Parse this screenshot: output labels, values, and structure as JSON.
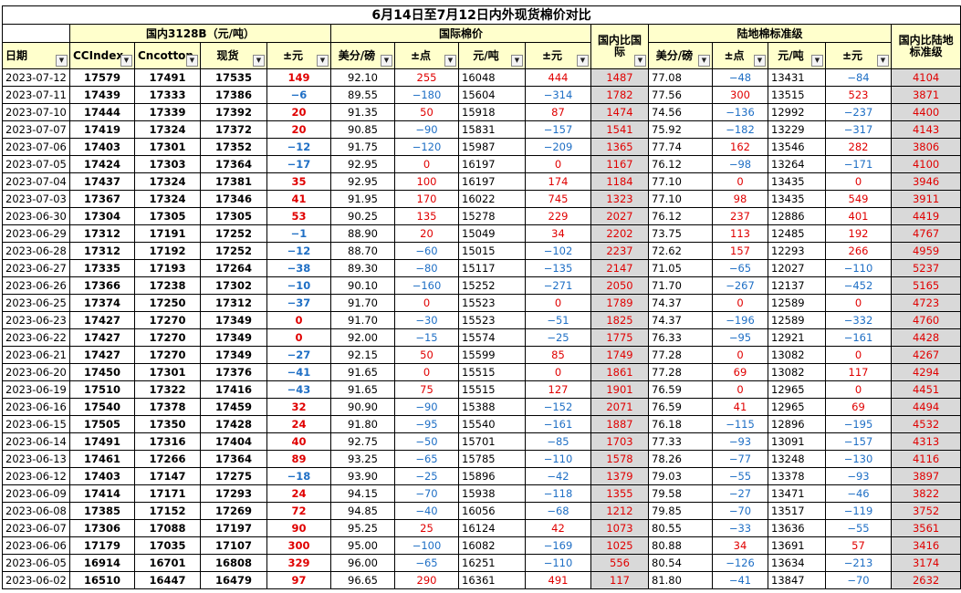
{
  "title": "6月14日至7月12日内外现货棉价对比",
  "groups": {
    "domestic": "国内3128B（元/吨）",
    "intl": "国际棉价",
    "land": "陆地棉标准级"
  },
  "headers": {
    "date": "日期",
    "ccindex": "CCIndex",
    "cncotton": "Cncotton",
    "spot": "现货",
    "chg": "±元",
    "usc_lb": "美分/磅",
    "chg_pts": "±点",
    "yuan_t": "元/吨",
    "chg_yuan": "±元",
    "dom_vs_intl": "国内比国际",
    "land_usc": "美分/磅",
    "land_chg_pts": "±点",
    "land_yuan": "元/吨",
    "land_chg_yuan": "±元",
    "dom_vs_land": "国内比陆地标准级"
  },
  "rows": [
    {
      "date": "2023-07-12",
      "cci": "17579",
      "cnc": "17491",
      "spot": "17535",
      "chg": "149",
      "usc": "92.10",
      "pts": "255",
      "yt": "16048",
      "yc": "444",
      "diff": "1487",
      "lusc": "77.08",
      "lpts": "−48",
      "lyt": "13431",
      "lyc": "−84",
      "ldiff": "4104"
    },
    {
      "date": "2023-07-11",
      "cci": "17439",
      "cnc": "17333",
      "spot": "17386",
      "chg": "−6",
      "usc": "89.55",
      "pts": "−180",
      "yt": "15604",
      "yc": "−314",
      "diff": "1782",
      "lusc": "77.56",
      "lpts": "300",
      "lyt": "13515",
      "lyc": "523",
      "ldiff": "3871"
    },
    {
      "date": "2023-07-10",
      "cci": "17444",
      "cnc": "17339",
      "spot": "17392",
      "chg": "20",
      "usc": "91.35",
      "pts": "50",
      "yt": "15918",
      "yc": "87",
      "diff": "1474",
      "lusc": "74.56",
      "lpts": "−136",
      "lyt": "12992",
      "lyc": "−237",
      "ldiff": "4400"
    },
    {
      "date": "2023-07-07",
      "cci": "17419",
      "cnc": "17324",
      "spot": "17372",
      "chg": "20",
      "usc": "90.85",
      "pts": "−90",
      "yt": "15831",
      "yc": "−157",
      "diff": "1541",
      "lusc": "75.92",
      "lpts": "−182",
      "lyt": "13229",
      "lyc": "−317",
      "ldiff": "4143"
    },
    {
      "date": "2023-07-06",
      "cci": "17403",
      "cnc": "17301",
      "spot": "17352",
      "chg": "−12",
      "usc": "91.75",
      "pts": "−120",
      "yt": "15987",
      "yc": "−209",
      "diff": "1365",
      "lusc": "77.74",
      "lpts": "162",
      "lyt": "13546",
      "lyc": "282",
      "ldiff": "3806"
    },
    {
      "date": "2023-07-05",
      "cci": "17424",
      "cnc": "17303",
      "spot": "17364",
      "chg": "−17",
      "usc": "92.95",
      "pts": "0",
      "yt": "16197",
      "yc": "0",
      "diff": "1167",
      "lusc": "76.12",
      "lpts": "−98",
      "lyt": "13264",
      "lyc": "−171",
      "ldiff": "4100"
    },
    {
      "date": "2023-07-04",
      "cci": "17437",
      "cnc": "17324",
      "spot": "17381",
      "chg": "35",
      "usc": "92.95",
      "pts": "100",
      "yt": "16197",
      "yc": "174",
      "diff": "1184",
      "lusc": "77.10",
      "lpts": "0",
      "lyt": "13435",
      "lyc": "0",
      "ldiff": "3946"
    },
    {
      "date": "2023-07-03",
      "cci": "17367",
      "cnc": "17324",
      "spot": "17346",
      "chg": "41",
      "usc": "91.95",
      "pts": "170",
      "yt": "16022",
      "yc": "745",
      "diff": "1323",
      "lusc": "77.10",
      "lpts": "98",
      "lyt": "13435",
      "lyc": "549",
      "ldiff": "3911"
    },
    {
      "date": "2023-06-30",
      "cci": "17304",
      "cnc": "17305",
      "spot": "17305",
      "chg": "53",
      "usc": "90.25",
      "pts": "135",
      "yt": "15278",
      "yc": "229",
      "diff": "2027",
      "lusc": "76.12",
      "lpts": "237",
      "lyt": "12886",
      "lyc": "401",
      "ldiff": "4419"
    },
    {
      "date": "2023-06-29",
      "cci": "17312",
      "cnc": "17191",
      "spot": "17252",
      "chg": "−1",
      "usc": "88.90",
      "pts": "20",
      "yt": "15049",
      "yc": "34",
      "diff": "2202",
      "lusc": "73.75",
      "lpts": "113",
      "lyt": "12485",
      "lyc": "192",
      "ldiff": "4767"
    },
    {
      "date": "2023-06-28",
      "cci": "17312",
      "cnc": "17192",
      "spot": "17252",
      "chg": "−12",
      "usc": "88.70",
      "pts": "−60",
      "yt": "15015",
      "yc": "−102",
      "diff": "2237",
      "lusc": "72.62",
      "lpts": "157",
      "lyt": "12293",
      "lyc": "266",
      "ldiff": "4959"
    },
    {
      "date": "2023-06-27",
      "cci": "17335",
      "cnc": "17193",
      "spot": "17264",
      "chg": "−38",
      "usc": "89.30",
      "pts": "−80",
      "yt": "15117",
      "yc": "−135",
      "diff": "2147",
      "lusc": "71.05",
      "lpts": "−65",
      "lyt": "12027",
      "lyc": "−110",
      "ldiff": "5237"
    },
    {
      "date": "2023-06-26",
      "cci": "17366",
      "cnc": "17238",
      "spot": "17302",
      "chg": "−10",
      "usc": "90.10",
      "pts": "−160",
      "yt": "15252",
      "yc": "−271",
      "diff": "2050",
      "lusc": "71.70",
      "lpts": "−267",
      "lyt": "12137",
      "lyc": "−452",
      "ldiff": "5165"
    },
    {
      "date": "2023-06-25",
      "cci": "17374",
      "cnc": "17250",
      "spot": "17312",
      "chg": "−37",
      "usc": "91.70",
      "pts": "0",
      "yt": "15523",
      "yc": "0",
      "diff": "1789",
      "lusc": "74.37",
      "lpts": "0",
      "lyt": "12589",
      "lyc": "0",
      "ldiff": "4723"
    },
    {
      "date": "2023-06-23",
      "cci": "17427",
      "cnc": "17270",
      "spot": "17349",
      "chg": "0",
      "usc": "91.70",
      "pts": "−30",
      "yt": "15523",
      "yc": "−51",
      "diff": "1825",
      "lusc": "74.37",
      "lpts": "−196",
      "lyt": "12589",
      "lyc": "−332",
      "ldiff": "4760"
    },
    {
      "date": "2023-06-22",
      "cci": "17427",
      "cnc": "17270",
      "spot": "17349",
      "chg": "0",
      "usc": "92.00",
      "pts": "−15",
      "yt": "15574",
      "yc": "−25",
      "diff": "1775",
      "lusc": "76.33",
      "lpts": "−95",
      "lyt": "12921",
      "lyc": "−161",
      "ldiff": "4428"
    },
    {
      "date": "2023-06-21",
      "cci": "17427",
      "cnc": "17270",
      "spot": "17349",
      "chg": "−27",
      "usc": "92.15",
      "pts": "50",
      "yt": "15599",
      "yc": "85",
      "diff": "1749",
      "lusc": "77.28",
      "lpts": "0",
      "lyt": "13082",
      "lyc": "0",
      "ldiff": "4267"
    },
    {
      "date": "2023-06-20",
      "cci": "17450",
      "cnc": "17301",
      "spot": "17376",
      "chg": "−41",
      "usc": "91.65",
      "pts": "0",
      "yt": "15515",
      "yc": "0",
      "diff": "1861",
      "lusc": "77.28",
      "lpts": "69",
      "lyt": "13082",
      "lyc": "117",
      "ldiff": "4294"
    },
    {
      "date": "2023-06-19",
      "cci": "17510",
      "cnc": "17322",
      "spot": "17416",
      "chg": "−43",
      "usc": "91.65",
      "pts": "75",
      "yt": "15515",
      "yc": "127",
      "diff": "1901",
      "lusc": "76.59",
      "lpts": "0",
      "lyt": "12965",
      "lyc": "0",
      "ldiff": "4451"
    },
    {
      "date": "2023-06-16",
      "cci": "17540",
      "cnc": "17378",
      "spot": "17459",
      "chg": "32",
      "usc": "90.90",
      "pts": "−90",
      "yt": "15388",
      "yc": "−152",
      "diff": "2071",
      "lusc": "76.59",
      "lpts": "41",
      "lyt": "12965",
      "lyc": "69",
      "ldiff": "4494"
    },
    {
      "date": "2023-06-15",
      "cci": "17505",
      "cnc": "17350",
      "spot": "17428",
      "chg": "24",
      "usc": "91.80",
      "pts": "−95",
      "yt": "15540",
      "yc": "−161",
      "diff": "1887",
      "lusc": "76.18",
      "lpts": "−115",
      "lyt": "12896",
      "lyc": "−195",
      "ldiff": "4532"
    },
    {
      "date": "2023-06-14",
      "cci": "17491",
      "cnc": "17316",
      "spot": "17404",
      "chg": "40",
      "usc": "92.75",
      "pts": "−50",
      "yt": "15701",
      "yc": "−85",
      "diff": "1703",
      "lusc": "77.33",
      "lpts": "−93",
      "lyt": "13091",
      "lyc": "−157",
      "ldiff": "4313"
    },
    {
      "date": "2023-06-13",
      "cci": "17461",
      "cnc": "17266",
      "spot": "17364",
      "chg": "89",
      "usc": "93.25",
      "pts": "−65",
      "yt": "15785",
      "yc": "−110",
      "diff": "1578",
      "lusc": "78.26",
      "lpts": "−77",
      "lyt": "13248",
      "lyc": "−130",
      "ldiff": "4116"
    },
    {
      "date": "2023-06-12",
      "cci": "17403",
      "cnc": "17147",
      "spot": "17275",
      "chg": "−18",
      "usc": "93.90",
      "pts": "−25",
      "yt": "15896",
      "yc": "−42",
      "diff": "1379",
      "lusc": "79.03",
      "lpts": "−55",
      "lyt": "13378",
      "lyc": "−93",
      "ldiff": "3897"
    },
    {
      "date": "2023-06-09",
      "cci": "17414",
      "cnc": "17171",
      "spot": "17293",
      "chg": "24",
      "usc": "94.15",
      "pts": "−70",
      "yt": "15938",
      "yc": "−118",
      "diff": "1355",
      "lusc": "79.58",
      "lpts": "−27",
      "lyt": "13471",
      "lyc": "−46",
      "ldiff": "3822"
    },
    {
      "date": "2023-06-08",
      "cci": "17385",
      "cnc": "17152",
      "spot": "17269",
      "chg": "72",
      "usc": "94.85",
      "pts": "−40",
      "yt": "16056",
      "yc": "−68",
      "diff": "1212",
      "lusc": "79.85",
      "lpts": "−70",
      "lyt": "13517",
      "lyc": "−119",
      "ldiff": "3752"
    },
    {
      "date": "2023-06-07",
      "cci": "17306",
      "cnc": "17088",
      "spot": "17197",
      "chg": "90",
      "usc": "95.25",
      "pts": "25",
      "yt": "16124",
      "yc": "42",
      "diff": "1073",
      "lusc": "80.55",
      "lpts": "−33",
      "lyt": "13636",
      "lyc": "−55",
      "ldiff": "3561"
    },
    {
      "date": "2023-06-06",
      "cci": "17179",
      "cnc": "17035",
      "spot": "17107",
      "chg": "300",
      "usc": "95.00",
      "pts": "−100",
      "yt": "16082",
      "yc": "−169",
      "diff": "1025",
      "lusc": "80.88",
      "lpts": "34",
      "lyt": "13691",
      "lyc": "57",
      "ldiff": "3416"
    },
    {
      "date": "2023-06-05",
      "cci": "16914",
      "cnc": "16701",
      "spot": "16808",
      "chg": "329",
      "usc": "96.00",
      "pts": "−65",
      "yt": "16251",
      "yc": "−110",
      "diff": "556",
      "lusc": "80.54",
      "lpts": "−126",
      "lyt": "13634",
      "lyc": "−213",
      "ldiff": "3174"
    },
    {
      "date": "2023-06-02",
      "cci": "16510",
      "cnc": "16447",
      "spot": "16479",
      "chg": "97",
      "usc": "96.65",
      "pts": "290",
      "yt": "16361",
      "yc": "491",
      "diff": "117",
      "lusc": "81.80",
      "lpts": "−41",
      "lyt": "13847",
      "lyc": "−70",
      "ldiff": "2632"
    }
  ]
}
